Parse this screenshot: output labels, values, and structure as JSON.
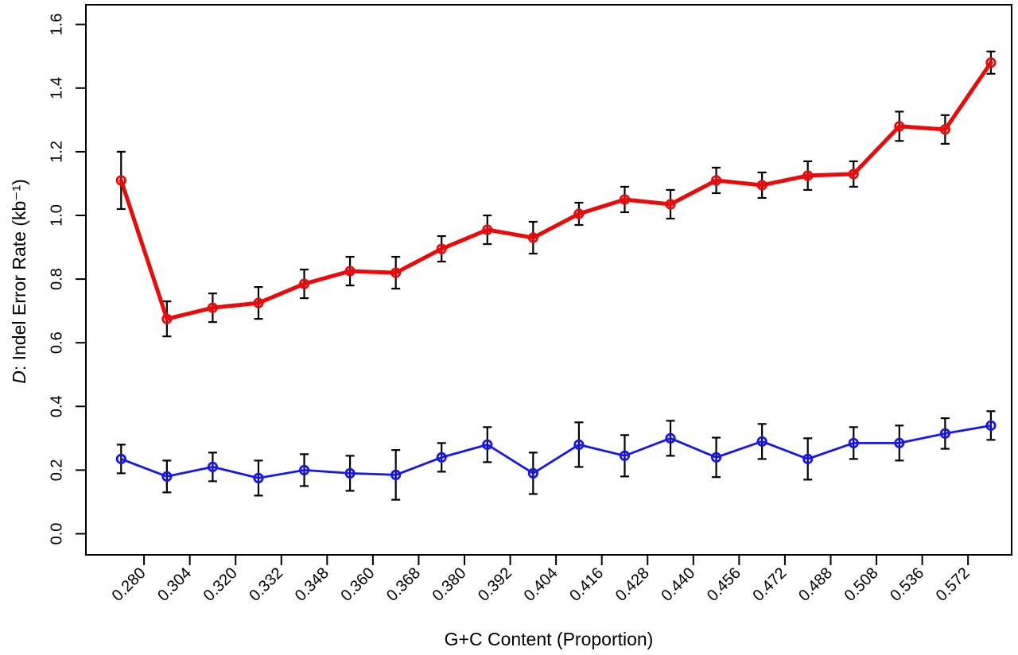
{
  "chart_data": {
    "type": "line",
    "title": "",
    "xlabel": "G+C Content (Proportion)",
    "ylabel_italic": "D",
    "ylabel_rest": ": Indel Error Rate (kb⁻¹)",
    "x_tick_labels": [
      "0.280",
      "0.304",
      "0.320",
      "0.332",
      "0.348",
      "0.360",
      "0.368",
      "0.380",
      "0.392",
      "0.404",
      "0.416",
      "0.428",
      "0.440",
      "0.456",
      "0.472",
      "0.488",
      "0.508",
      "0.536",
      "0.572"
    ],
    "x_tick_placement": "boundaries between the 20 plotted bins",
    "y_ticks": [
      "0.0",
      "0.2",
      "0.4",
      "0.6",
      "0.8",
      "1.0",
      "1.2",
      "1.4",
      "1.6"
    ],
    "ylim": [
      0.0,
      1.6
    ],
    "grid": false,
    "legend": "none",
    "frame_color": "#000000",
    "error_bar_color": "#000000",
    "series": [
      {
        "name": "red",
        "color": "#ee0909",
        "marker": "open-circle",
        "line_width": 5,
        "values": [
          1.11,
          0.675,
          0.71,
          0.725,
          0.785,
          0.825,
          0.82,
          0.895,
          0.955,
          0.93,
          1.005,
          1.05,
          1.035,
          1.11,
          1.095,
          1.125,
          1.13,
          1.28,
          1.27,
          1.48
        ],
        "errors": [
          0.09,
          0.055,
          0.045,
          0.05,
          0.045,
          0.045,
          0.05,
          0.04,
          0.045,
          0.05,
          0.035,
          0.04,
          0.045,
          0.04,
          0.04,
          0.045,
          0.04,
          0.046,
          0.045,
          0.035
        ]
      },
      {
        "name": "blue",
        "color": "#1616ee",
        "marker": "open-circle",
        "line_width": 2.8,
        "values": [
          0.235,
          0.18,
          0.21,
          0.175,
          0.2,
          0.19,
          0.185,
          0.24,
          0.28,
          0.19,
          0.28,
          0.245,
          0.3,
          0.24,
          0.29,
          0.235,
          0.285,
          0.285,
          0.315,
          0.34
        ],
        "errors": [
          0.045,
          0.05,
          0.045,
          0.055,
          0.05,
          0.055,
          0.078,
          0.045,
          0.055,
          0.065,
          0.07,
          0.065,
          0.055,
          0.062,
          0.055,
          0.065,
          0.05,
          0.055,
          0.048,
          0.045
        ]
      }
    ]
  }
}
